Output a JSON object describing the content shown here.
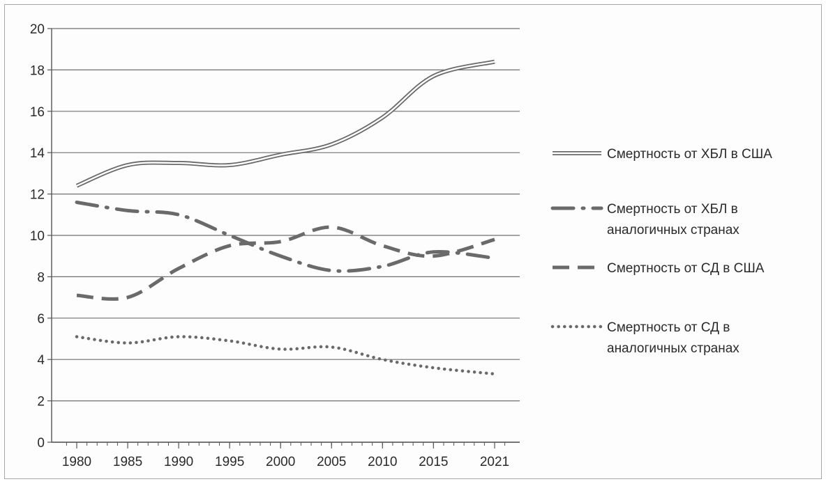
{
  "chart_data": {
    "type": "line",
    "title": "",
    "xlabel": "",
    "ylabel": "",
    "x": [
      1980,
      1985,
      1990,
      1995,
      2000,
      2005,
      2010,
      2015,
      2021
    ],
    "xtick_labels": [
      "1980",
      "1985",
      "1990",
      "1995",
      "2000",
      "2005",
      "2010",
      "2015",
      "2021"
    ],
    "ylim": [
      0,
      20
    ],
    "yticks": [
      0,
      2,
      4,
      6,
      8,
      10,
      12,
      14,
      16,
      18,
      20
    ],
    "ytick_labels": [
      "0",
      "2",
      "4",
      "6",
      "8",
      "10",
      "12",
      "14",
      "16",
      "18",
      "20"
    ],
    "grid": "horizontal",
    "legend_position": "right",
    "series": [
      {
        "name": "Смертность от ХБЛ в США",
        "legend_lines": [
          "Смертность от ХБЛ в США"
        ],
        "style": "double",
        "color": "#6a6a6a",
        "values": [
          12.4,
          13.4,
          13.5,
          13.4,
          13.9,
          14.4,
          15.7,
          17.7,
          18.4
        ]
      },
      {
        "name": "Смертность от ХБЛ в аналогичных странах",
        "legend_lines": [
          "Смертность от ХБЛ в",
          "аналогичных странах"
        ],
        "style": "dashdot",
        "color": "#6a6a6a",
        "values": [
          11.6,
          11.2,
          11.0,
          10.0,
          9.0,
          8.3,
          8.5,
          9.2,
          8.9
        ]
      },
      {
        "name": "Смертность от СД в США",
        "legend_lines": [
          "Смертность от СД в США"
        ],
        "style": "dashed",
        "color": "#6a6a6a",
        "values": [
          7.1,
          7.0,
          8.4,
          9.5,
          9.7,
          10.4,
          9.5,
          9.0,
          9.8
        ]
      },
      {
        "name": "Смертность от СД в аналогичных странах",
        "legend_lines": [
          "Смертность от СД в",
          "аналогичных странах"
        ],
        "style": "dotted",
        "color": "#6a6a6a",
        "values": [
          5.1,
          4.8,
          5.1,
          4.9,
          4.5,
          4.6,
          4.0,
          3.6,
          3.3
        ]
      }
    ]
  }
}
